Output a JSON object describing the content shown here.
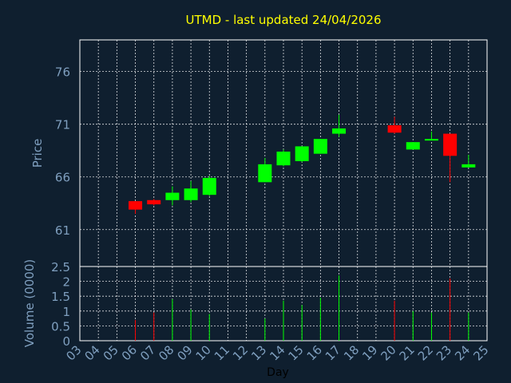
{
  "chart_data": {
    "type": "candlestick",
    "title": "UTMD - last updated 24/04/2026",
    "ylabel": "Price",
    "volume_label": "Volume (0000)",
    "xlabel": "Day",
    "colors": {
      "up": "#00ff00",
      "down": "#ff0000",
      "text": "#7f9fbf",
      "title": "#ffff00",
      "background": "#0f1f2f",
      "grid": "#ffffff"
    },
    "price_ylim": [
      57.5,
      79
    ],
    "price_ticks": [
      61,
      66,
      71,
      76
    ],
    "volume_ylim": [
      0,
      2.5
    ],
    "volume_ticks": [
      "0",
      "0.5",
      "1",
      "1.5",
      "2",
      "2.5"
    ],
    "x_ticks": [
      "03",
      "04",
      "05",
      "06",
      "07",
      "08",
      "09",
      "10",
      "11",
      "12",
      "13",
      "14",
      "15",
      "16",
      "17",
      "18",
      "19",
      "20",
      "21",
      "22",
      "23",
      "24",
      "25"
    ],
    "candles": [
      {
        "day": "06",
        "open": 63.7,
        "close": 62.9,
        "high": 63.7,
        "low": 62.5,
        "volume": 0.7
      },
      {
        "day": "07",
        "open": 63.8,
        "close": 63.4,
        "high": 63.9,
        "low": 63.3,
        "volume": 0.95
      },
      {
        "day": "08",
        "open": 63.8,
        "close": 64.5,
        "high": 65.1,
        "low": 63.3,
        "volume": 1.4
      },
      {
        "day": "09",
        "open": 63.8,
        "close": 64.9,
        "high": 65.6,
        "low": 63.6,
        "volume": 1.05
      },
      {
        "day": "10",
        "open": 64.3,
        "close": 65.9,
        "high": 66.1,
        "low": 64.2,
        "volume": 0.9
      },
      {
        "day": "13",
        "open": 65.5,
        "close": 67.2,
        "high": 67.8,
        "low": 65.5,
        "volume": 0.75
      },
      {
        "day": "14",
        "open": 67.1,
        "close": 68.4,
        "high": 68.6,
        "low": 67.0,
        "volume": 1.35
      },
      {
        "day": "15",
        "open": 67.5,
        "close": 68.9,
        "high": 68.9,
        "low": 67.4,
        "volume": 1.2
      },
      {
        "day": "16",
        "open": 68.2,
        "close": 69.6,
        "high": 69.6,
        "low": 68.2,
        "volume": 1.45
      },
      {
        "day": "17",
        "open": 70.1,
        "close": 70.6,
        "high": 71.9,
        "low": 69.8,
        "volume": 2.2
      },
      {
        "day": "20",
        "open": 70.9,
        "close": 70.2,
        "high": 71.7,
        "low": 70.1,
        "volume": 1.35
      },
      {
        "day": "21",
        "open": 68.6,
        "close": 69.3,
        "high": 69.3,
        "low": 68.6,
        "volume": 1.0
      },
      {
        "day": "22",
        "open": 69.5,
        "close": 69.6,
        "high": 70.3,
        "low": 69.5,
        "volume": 0.95
      },
      {
        "day": "23",
        "open": 70.1,
        "close": 68.0,
        "high": 70.1,
        "low": 65.5,
        "volume": 2.1
      },
      {
        "day": "24",
        "open": 66.9,
        "close": 67.2,
        "high": 68.1,
        "low": 66.9,
        "volume": 0.95
      }
    ]
  }
}
